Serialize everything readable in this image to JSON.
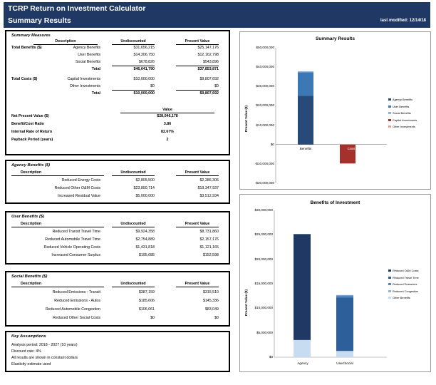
{
  "header": {
    "title": "TCRP Return on Investment Calculator",
    "subtitle": "Summary Results",
    "last_modified": "last modified: 12/14/18"
  },
  "summary": {
    "title": "Summary Measures",
    "col_desc": "Description",
    "col_undisc": "Undiscounted",
    "col_pv": "Present Value",
    "benefits_label": "Total Benefits ($)",
    "costs_label": "Total Costs ($)",
    "benefit_rows": [
      {
        "label": "Agency Benefits",
        "u": "$31,656,215",
        "pv": "$25,147,176"
      },
      {
        "label": "User Benefits",
        "u": "$14,306,750",
        "pv": "$12,162,798"
      },
      {
        "label": "Social Benefits",
        "u": "$678,826",
        "pv": "$543,896"
      },
      {
        "label": "Total",
        "u": "$46,641,790",
        "pv": "$37,853,871"
      }
    ],
    "cost_rows": [
      {
        "label": "Capital Investments",
        "u": "$10,000,000",
        "pv": "$9,807,692"
      },
      {
        "label": "Other Investments",
        "u": "$0",
        "pv": "$0"
      },
      {
        "label": "Total",
        "u": "$10,000,000",
        "pv": "$9,807,692"
      }
    ],
    "value_header": "Value",
    "measures": [
      {
        "label": "Net Present Value ($)",
        "value": "$28,046,178"
      },
      {
        "label": "Benefit/Cost Ratio",
        "value": "3.86"
      },
      {
        "label": "Internal Rate of Return",
        "value": "82.67%"
      },
      {
        "label": "Payback Period (years)",
        "value": "2"
      }
    ]
  },
  "agency": {
    "title": "Agency Benefits ($)",
    "col_desc": "Description",
    "col_undisc": "Undiscounted",
    "col_pv": "Present Value",
    "rows": [
      {
        "label": "Reduced Energy Costs",
        "u": "$2,805,500",
        "pv": "$2,286,306"
      },
      {
        "label": "Reduced Other O&M Costs",
        "u": "$23,850,714",
        "pv": "$19,347,937"
      },
      {
        "label": "Increased Residual Value",
        "u": "$5,000,000",
        "pv": "$3,512,934"
      }
    ]
  },
  "user": {
    "title": "User Benefits ($)",
    "col_desc": "Description",
    "col_undisc": "Undiscounted",
    "col_pv": "Present Value",
    "rows": [
      {
        "label": "Reduced Transit Travel Time",
        "u": "$9,924,358",
        "pv": "$8,731,860"
      },
      {
        "label": "Reduced Automobile Travel Time",
        "u": "$2,754,889",
        "pv": "$2,157,176"
      },
      {
        "label": "Reduced Vehicle Operating Costs",
        "u": "$1,431,818",
        "pv": "$1,121,165"
      },
      {
        "label": "Increased Consumer Surplus",
        "u": "$195,685",
        "pv": "$152,598"
      }
    ]
  },
  "social": {
    "title": "Social Benefits ($)",
    "col_desc": "Description",
    "col_undisc": "Undiscounted",
    "col_pv": "Present Value",
    "rows": [
      {
        "label": "Reduced Emissions - Transit",
        "u": "$387,159",
        "pv": "$315,510"
      },
      {
        "label": "Reduced Emissions - Autos",
        "u": "$185,606",
        "pv": "$145,336"
      },
      {
        "label": "Reduced Automobile Congestion",
        "u": "$106,061",
        "pv": "$83,049"
      },
      {
        "label": "Reduced Other Social Costs",
        "u": "$0",
        "pv": "$0"
      }
    ]
  },
  "assumptions": {
    "title": "Key Assumptions",
    "lines": [
      "Analysis period: 2018 - 2027 (10 years)",
      "Discount rate: 4%",
      "All results are shown in constant dollars",
      "Elasticity estimate used"
    ]
  },
  "chart1": {
    "title": "Summary Results",
    "ylabel": "Present Value ($)",
    "ticks": [
      "$50,000,000",
      "$40,000,000",
      "$30,000,000",
      "$20,000,000",
      "$10,000,000",
      "$0",
      "-$10,000,000",
      "-$20,000,000"
    ],
    "legend": [
      "Agency Benefits",
      "User Benefits",
      "Social Benefits",
      "Capital Investments",
      "Other Investments"
    ],
    "colors": {
      "agency": "#274a78",
      "user": "#3c78b4",
      "social": "#8cb3dc",
      "capital": "#a6302c",
      "other": "#e6a0a0"
    }
  },
  "chart2": {
    "title": "Benefits of Investment",
    "ylabel": "Present Value ($)",
    "ticks": [
      "$30,000,000",
      "$25,000,000",
      "$20,000,000",
      "$15,000,000",
      "$10,000,000",
      "$5,000,000",
      "$0"
    ],
    "legend": [
      "Reduced O&M Costs",
      "Reduced Travel Time",
      "Reduced Emissions",
      "Reduced Congestion",
      "Other Benefits"
    ],
    "colors": {
      "om": "#1f3864",
      "travel": "#2d5f9a",
      "emissions": "#4f87c6",
      "congestion": "#8eb5e1",
      "other": "#c7dbf1"
    }
  },
  "chart_data": [
    {
      "type": "bar",
      "title": "Summary Results",
      "ylabel": "Present Value ($)",
      "categories": [
        "Benefits",
        "Costs"
      ],
      "stacked": true,
      "ylim": [
        -20000000,
        50000000
      ],
      "grid": false,
      "legend_position": "right",
      "series": [
        {
          "name": "Agency Benefits",
          "values": [
            25147176,
            0
          ]
        },
        {
          "name": "User Benefits",
          "values": [
            12162798,
            0
          ]
        },
        {
          "name": "Social Benefits",
          "values": [
            543896,
            0
          ]
        },
        {
          "name": "Capital Investments",
          "values": [
            0,
            -9807692
          ]
        },
        {
          "name": "Other Investments",
          "values": [
            0,
            0
          ]
        }
      ]
    },
    {
      "type": "bar",
      "title": "Benefits of Investment",
      "ylabel": "Present Value ($)",
      "categories": [
        "Agency",
        "User/Social"
      ],
      "stacked": true,
      "ylim": [
        0,
        30000000
      ],
      "grid": false,
      "legend_position": "right",
      "series": [
        {
          "name": "Reduced O&M Costs",
          "values": [
            21634243,
            0
          ]
        },
        {
          "name": "Reduced Travel Time",
          "values": [
            0,
            10889036
          ]
        },
        {
          "name": "Reduced Emissions",
          "values": [
            0,
            460846
          ]
        },
        {
          "name": "Reduced Congestion",
          "values": [
            0,
            83049
          ]
        },
        {
          "name": "Other Benefits",
          "values": [
            3512934,
            1273763
          ]
        }
      ]
    }
  ]
}
